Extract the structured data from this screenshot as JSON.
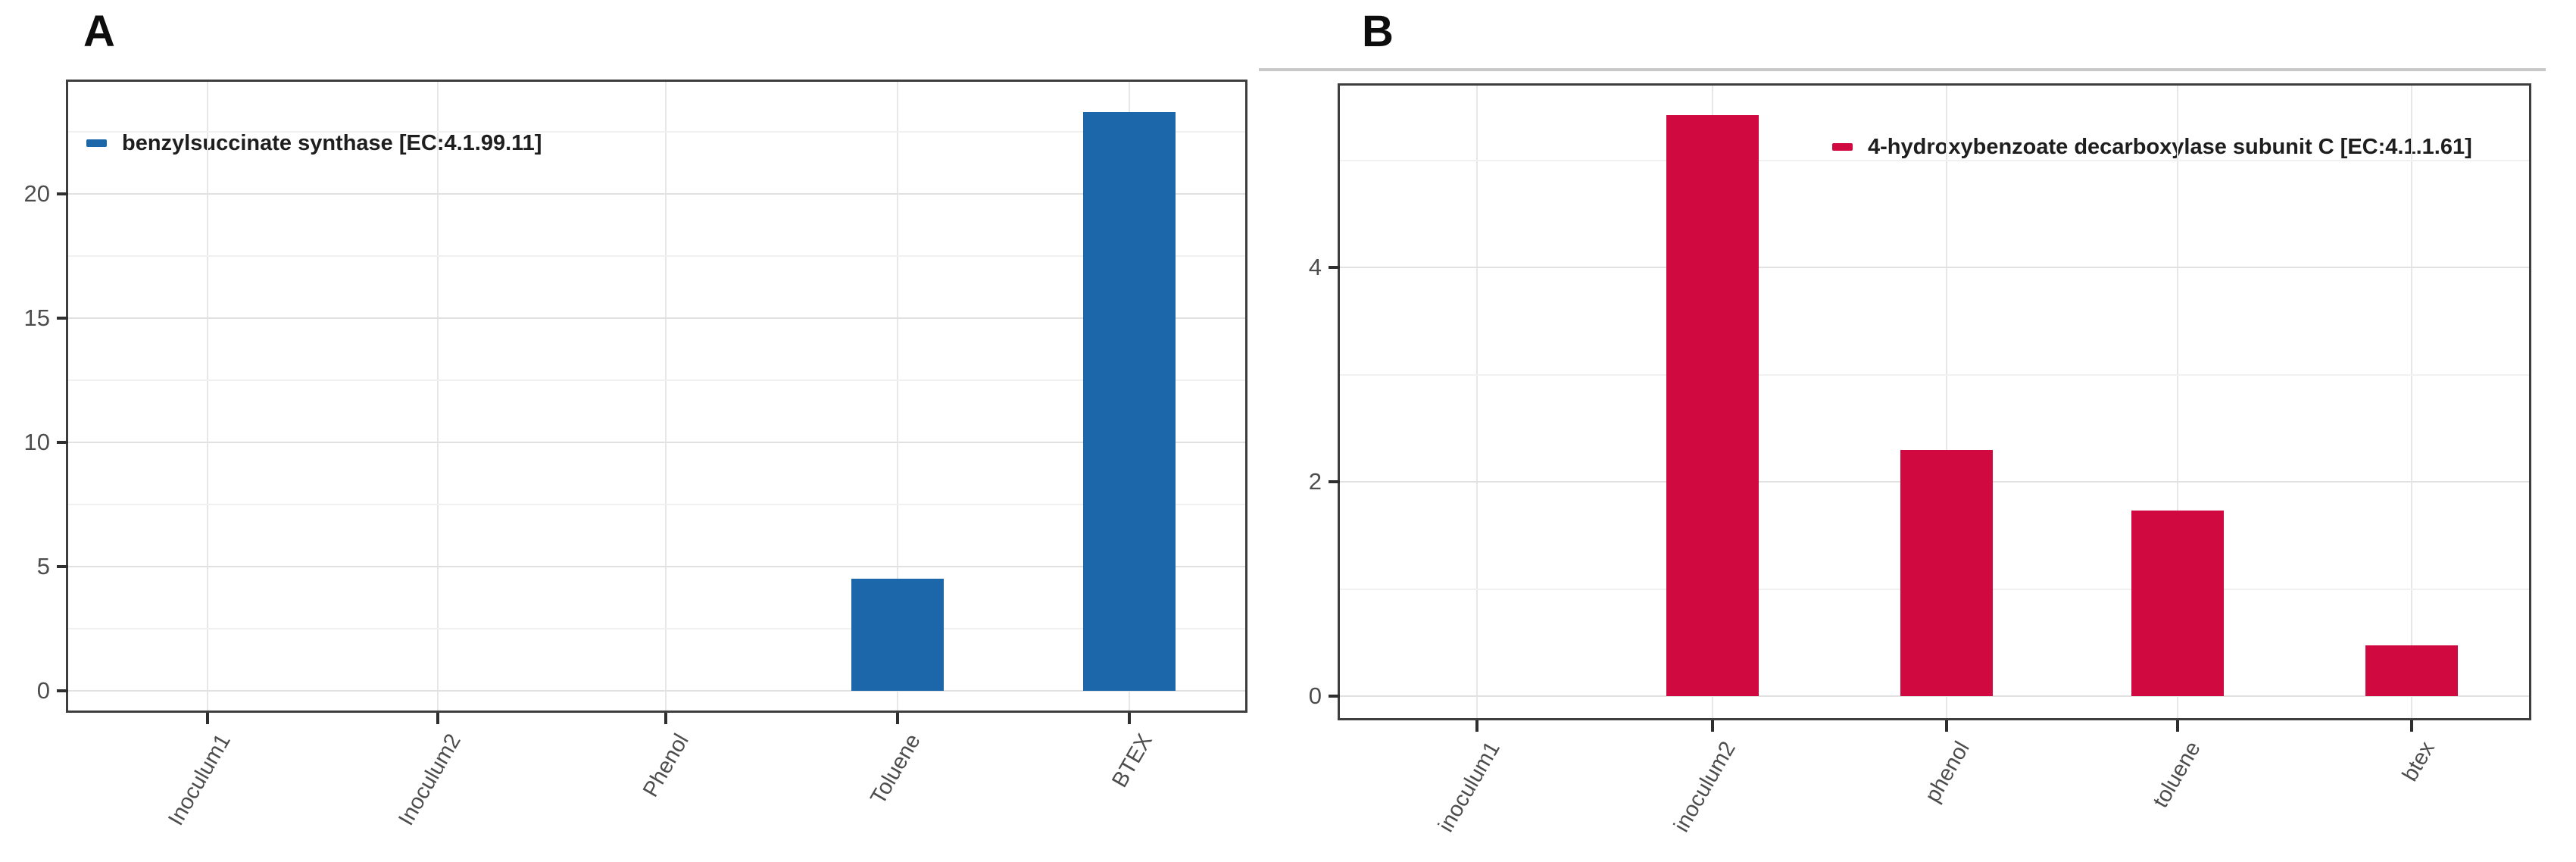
{
  "chart_data": [
    {
      "type": "bar",
      "panel": "A",
      "title": "A",
      "legend": "benzylsuccinate synthase [EC:4.1.99.11]",
      "color": "#1b67a9",
      "categories": [
        "Inoculum1",
        "Inoculum2",
        "Phenol",
        "Toluene",
        "BTEX"
      ],
      "values": [
        0,
        0,
        0,
        4.5,
        23.3
      ],
      "xlabel": "",
      "ylabel": "",
      "ylim": [
        0,
        24.5
      ],
      "yticks_major": [
        0,
        5,
        10,
        15,
        20
      ],
      "yticks_minor": [
        2.5,
        7.5,
        12.5,
        17.5,
        22.5
      ],
      "grid": true,
      "legend_position": "top-left-inside"
    },
    {
      "type": "bar",
      "panel": "B",
      "title": "B",
      "legend": "4-hydroxybenzoate decarboxylase subunit C [EC:4.1.1.61]",
      "color": "#d00a41",
      "categories": [
        "inoculum1",
        "inoculum2",
        "phenol",
        "toluene",
        "btex"
      ],
      "values": [
        0,
        5.42,
        2.3,
        1.73,
        0.47
      ],
      "xlabel": "",
      "ylabel": "",
      "ylim": [
        0,
        5.7
      ],
      "yticks_major": [
        0,
        2,
        4
      ],
      "yticks_minor": [
        1,
        3,
        5
      ],
      "grid": true,
      "legend_position": "top-right-inside"
    }
  ]
}
